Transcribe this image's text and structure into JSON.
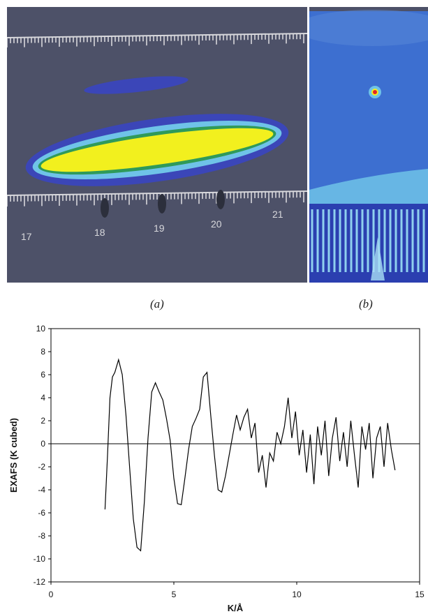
{
  "panels": {
    "a": {
      "caption_prefix": "(",
      "caption_letter": "a",
      "caption_suffix": ")",
      "ruler_top_labels": [
        "17",
        "18",
        "19",
        "20",
        "21"
      ]
    },
    "b": {
      "caption_prefix": "(",
      "caption_letter": "b",
      "caption_suffix": ")"
    }
  },
  "colors": {
    "photo_background": "#4d5168",
    "heat_outer": "#3b46b8",
    "heat_mid": "#6fc3e8",
    "heat_core": "#f2f01e",
    "panel_b_background": "#3d6fd0",
    "panel_b_spot": "#e0242a",
    "line": "#000000"
  },
  "chart_data": {
    "type": "line",
    "xlabel": "K/Å",
    "ylabel": "EXAFS (K cubed)",
    "xlim": [
      0,
      15
    ],
    "ylim": [
      -12,
      10
    ],
    "xticks": [
      0,
      5,
      10,
      15
    ],
    "yticks": [
      10,
      8,
      6,
      4,
      2,
      0,
      -2,
      -4,
      -6,
      -8,
      -10,
      -12
    ],
    "zero_line": true,
    "grid": false,
    "series": [
      {
        "x": [
          2.2,
          2.3,
          2.4,
          2.5,
          2.6,
          2.75,
          2.9,
          3.05,
          3.2,
          3.35,
          3.5,
          3.65,
          3.8,
          3.95,
          4.1,
          4.25,
          4.4,
          4.55,
          4.7,
          4.85,
          5.0,
          5.15,
          5.3,
          5.45,
          5.6,
          5.75,
          5.9,
          6.05,
          6.2,
          6.35,
          6.5,
          6.65,
          6.8,
          6.95,
          7.1,
          7.25,
          7.4,
          7.55,
          7.7,
          7.85,
          8.0,
          8.15,
          8.3,
          8.45,
          8.6,
          8.75,
          8.9,
          9.05,
          9.2,
          9.35,
          9.5,
          9.65,
          9.8,
          9.95,
          10.1,
          10.25,
          10.4,
          10.55,
          10.7,
          10.85,
          11.0,
          11.15,
          11.3,
          11.45,
          11.6,
          11.75,
          11.9,
          12.05,
          12.2,
          12.35,
          12.5,
          12.65,
          12.8,
          12.95,
          13.1,
          13.25,
          13.4,
          13.55,
          13.7,
          13.85,
          14.0
        ],
        "y": [
          -5.7,
          -1.0,
          4.0,
          5.8,
          6.2,
          7.3,
          6.0,
          2.5,
          -2.0,
          -6.5,
          -9.0,
          -9.3,
          -5.0,
          0.5,
          4.5,
          5.3,
          4.5,
          3.8,
          2.2,
          0.3,
          -3.0,
          -5.2,
          -5.3,
          -3.0,
          -0.5,
          1.5,
          2.2,
          3.0,
          5.8,
          6.2,
          2.5,
          -1.0,
          -4.0,
          -4.2,
          -2.8,
          -1.0,
          0.8,
          2.5,
          1.2,
          2.3,
          3.0,
          0.5,
          1.8,
          -2.5,
          -1.0,
          -3.8,
          -0.8,
          -1.5,
          1.0,
          0.0,
          1.5,
          4.0,
          0.5,
          2.8,
          -1.0,
          1.2,
          -2.5,
          0.8,
          -3.5,
          1.5,
          -1.0,
          2.0,
          -2.8,
          0.5,
          2.3,
          -1.5,
          1.0,
          -2.0,
          2.0,
          -1.0,
          -3.8,
          1.5,
          -0.5,
          1.8,
          -3.0,
          0.5,
          1.5,
          -2.0,
          1.8,
          -0.5,
          -2.3
        ]
      }
    ]
  }
}
